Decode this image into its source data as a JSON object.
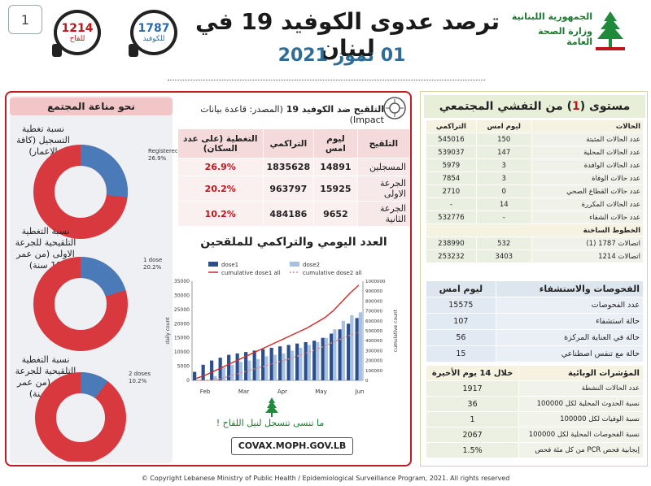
{
  "header": {
    "page_number": "1",
    "vaccine_line": {
      "value": "1214",
      "label": "للقاح"
    },
    "covid_line": {
      "value": "1787",
      "label": "للكوفيد"
    },
    "title": "ترصد عدوى الكوفيد 19 في لبنان",
    "date": "01 تموز 2021",
    "ministry_line1": "الجمهورية اللبنانية",
    "ministry_line2": "وزارة الصحة العامة"
  },
  "community": {
    "heading": "نحو مناعة المجتمع",
    "registered_label": "نسبة تغطية التسجيل (كافة الاعمار)",
    "registered_note": [
      "Registered",
      "26.9%"
    ],
    "dose1_label": "نسبة التغطية التلقيحية للجرعة الاولى (من عمر 18 سنة)",
    "dose1_note": [
      "1 dose",
      "20.2%"
    ],
    "dose2_label": "نسبة التغطية التلقيحية للجرعة الثانية (من عمر 18 سنة)",
    "dose2_note": [
      "2 doses",
      "10.2%"
    ],
    "colors": {
      "covered": "#4a7ab8",
      "remaining": "#d8393e"
    }
  },
  "vaccination": {
    "title": "التلقيح ضد الكوفيد 19",
    "source": "(المصدر: قاعدة بيانات Impact)",
    "headers": [
      "التلقيح",
      "ليوم امس",
      "التراكمي",
      "التغطية (على عدد السكان)"
    ],
    "rows": [
      {
        "label": "المسجلين",
        "yesterday": "14891",
        "cumulative": "1835628",
        "coverage": "26.9%"
      },
      {
        "label": "الجرعة الاولى",
        "yesterday": "15925",
        "cumulative": "963797",
        "coverage": "20.2%"
      },
      {
        "label": "الجرعة الثانية",
        "yesterday": "9652",
        "cumulative": "484186",
        "coverage": "10.2%"
      }
    ]
  },
  "chart_section": {
    "title": "العدد اليومي والتراكمي للملقحين",
    "slogan": "ما تنسى تتسجل لنيل اللقاح !",
    "url": "COVAX.MOPH.GOV.LB"
  },
  "chart_data": {
    "type": "bar",
    "title": "",
    "ylabel": "daily count",
    "y2label": "cumulative count",
    "ylim": [
      0,
      35000
    ],
    "y2lim": [
      0,
      1000000
    ],
    "yticks": [
      "0",
      "5000",
      "10000",
      "15000",
      "20000",
      "25000",
      "30000",
      "35000"
    ],
    "y2ticks": [
      "0",
      "100000",
      "200000",
      "300000",
      "400000",
      "500000",
      "600000",
      "700000",
      "800000",
      "900000",
      "1000000"
    ],
    "month_labels": [
      "Feb",
      "Mar",
      "Apr",
      "May",
      "Jun"
    ],
    "legend": [
      "dose1",
      "dose2",
      "cumulative dose1 all",
      "cumulative dose2 all"
    ],
    "x": [
      "2/14",
      "2/21",
      "2/28",
      "3/7",
      "3/14",
      "3/21",
      "3/28",
      "4/4",
      "4/11",
      "4/18",
      "4/25",
      "5/2",
      "5/9",
      "5/16",
      "5/23",
      "5/30",
      "6/6",
      "6/13",
      "6/20",
      "6/27"
    ],
    "series": [
      {
        "name": "dose1",
        "color": "#2b4f8c",
        "values": [
          3000,
          5500,
          7000,
          8000,
          9000,
          9500,
          10000,
          10500,
          11000,
          11500,
          12000,
          12500,
          13000,
          13500,
          14000,
          15000,
          16500,
          18000,
          20000,
          22000
        ]
      },
      {
        "name": "dose2",
        "color": "#a8c1e2",
        "values": [
          0,
          0,
          1500,
          4500,
          5500,
          6500,
          7000,
          7500,
          8500,
          9000,
          9500,
          10500,
          11500,
          12500,
          13500,
          15000,
          18000,
          21000,
          23000,
          24000
        ]
      },
      {
        "name": "cumulative dose1 all",
        "color": "#d62728",
        "values": [
          20000,
          50000,
          90000,
          130000,
          170000,
          210000,
          250000,
          290000,
          330000,
          370000,
          410000,
          450000,
          490000,
          530000,
          580000,
          630000,
          700000,
          790000,
          880000,
          960000
        ]
      },
      {
        "name": "cumulative dose2 all",
        "color": "#e58585",
        "values": [
          0,
          0,
          5000,
          20000,
          45000,
          70000,
          95000,
          120000,
          145000,
          170000,
          195000,
          220000,
          250000,
          280000,
          310000,
          345000,
          385000,
          420000,
          455000,
          484000
        ]
      }
    ]
  },
  "community_spread": {
    "heading_prefix": "مستوى (",
    "heading_level": "1",
    "heading_suffix": ") من التفشي المجتمعي",
    "cases_headers": [
      "الحالات",
      "ليوم امس",
      "التراكمي"
    ],
    "cases": [
      {
        "label": "عدد الحالات المثبتة",
        "yesterday": "150",
        "cumulative": "545016"
      },
      {
        "label": "عدد الحالات المحلية",
        "yesterday": "147",
        "cumulative": "539037"
      },
      {
        "label": "عدد الحالات الوافدة",
        "yesterday": "3",
        "cumulative": "5979"
      },
      {
        "label": "عدد حالات الوفاة",
        "yesterday": "3",
        "cumulative": "7854"
      },
      {
        "label": "عدد حالات القطاع الصحي",
        "yesterday": "0",
        "cumulative": "2710"
      },
      {
        "label": "عدد الحالات المكررة",
        "yesterday": "14",
        "cumulative": "-"
      },
      {
        "label": "عدد حالات الشفاء",
        "yesterday": "-",
        "cumulative": "532776"
      }
    ],
    "hotlines_heading": "الخطوط الساخنة",
    "hotlines": [
      {
        "label": "اتصالات 1787 (1)",
        "yesterday": "532",
        "cumulative": "238990"
      },
      {
        "label": "اتصالات 1214",
        "yesterday": "3403",
        "cumulative": "253232"
      }
    ]
  },
  "tests": {
    "heading": "الفحوصات والاستشفاء",
    "col": "ليوم امس",
    "rows": [
      {
        "label": "عدد الفحوصات",
        "value": "15575"
      },
      {
        "label": "حالة استشفاء",
        "value": "107"
      },
      {
        "label": "حالة في العناية المركزة",
        "value": "56"
      },
      {
        "label": "حالة مع تنفس اصطناعي",
        "value": "15"
      }
    ]
  },
  "indicators": {
    "heading": "المؤشرات الوبائية",
    "col": "خلال 14 يوم الأخيرة",
    "rows": [
      {
        "label": "عدد الحالات النشطة",
        "value": "1917"
      },
      {
        "label": "نسبة الحدوث المحلية لكل 100000",
        "value": "36"
      },
      {
        "label": "نسبة الوفيات لكل 100000",
        "value": "1"
      },
      {
        "label": "نسبة الفحوصات المحلية لكل 100000",
        "value": "2067"
      },
      {
        "label": "إيجابية فحص PCR من كل مئة فحص",
        "value": "1.5%"
      }
    ]
  },
  "footer": "© Copyright Lebanese Ministry of Public Health / Epidemiological Surveillance Program, 2021. All rights reserved"
}
